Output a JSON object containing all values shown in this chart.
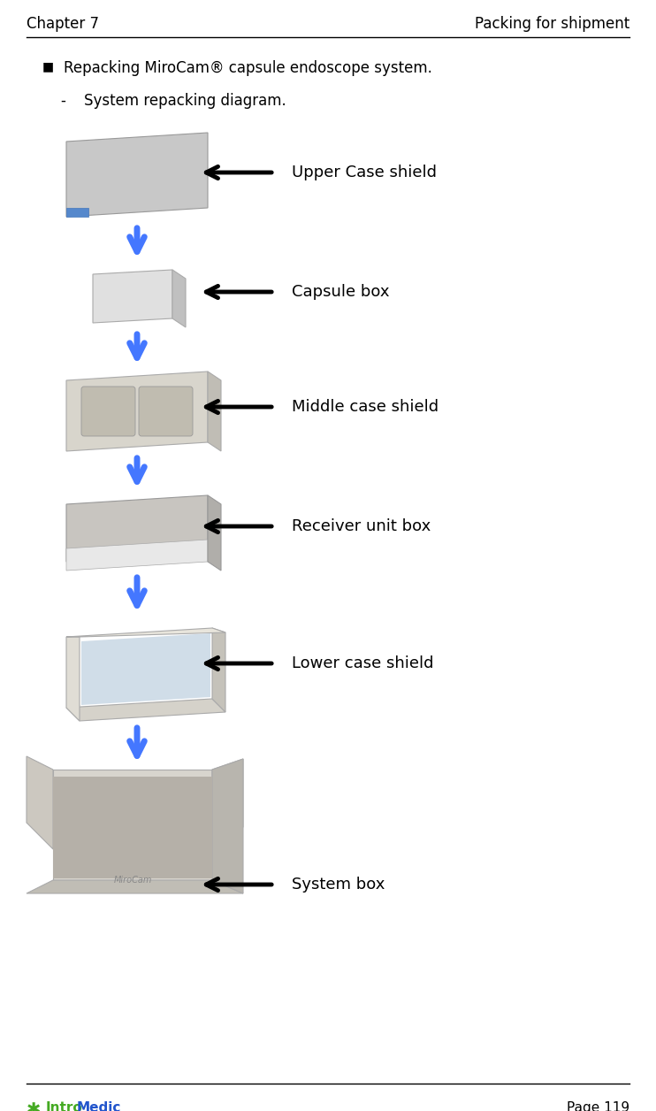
{
  "page_title_left": "Chapter 7",
  "page_title_right": "Packing for shipment",
  "bullet_text": "Repacking MiroCam® capsule endoscope system.",
  "sub_bullet_text": "System repacking diagram.",
  "items": [
    {
      "label": "Upper Case shield"
    },
    {
      "label": "Capsule box"
    },
    {
      "label": "Middle case shield"
    },
    {
      "label": "Receiver unit box"
    },
    {
      "label": "Lower case shield"
    },
    {
      "label": "System box"
    }
  ],
  "arrow_blue": "#4477ff",
  "page_number": "Page 119",
  "bg_color": "#ffffff",
  "text_color": "#000000",
  "header_fontsize": 12,
  "body_fontsize": 12,
  "label_fontsize": 13
}
